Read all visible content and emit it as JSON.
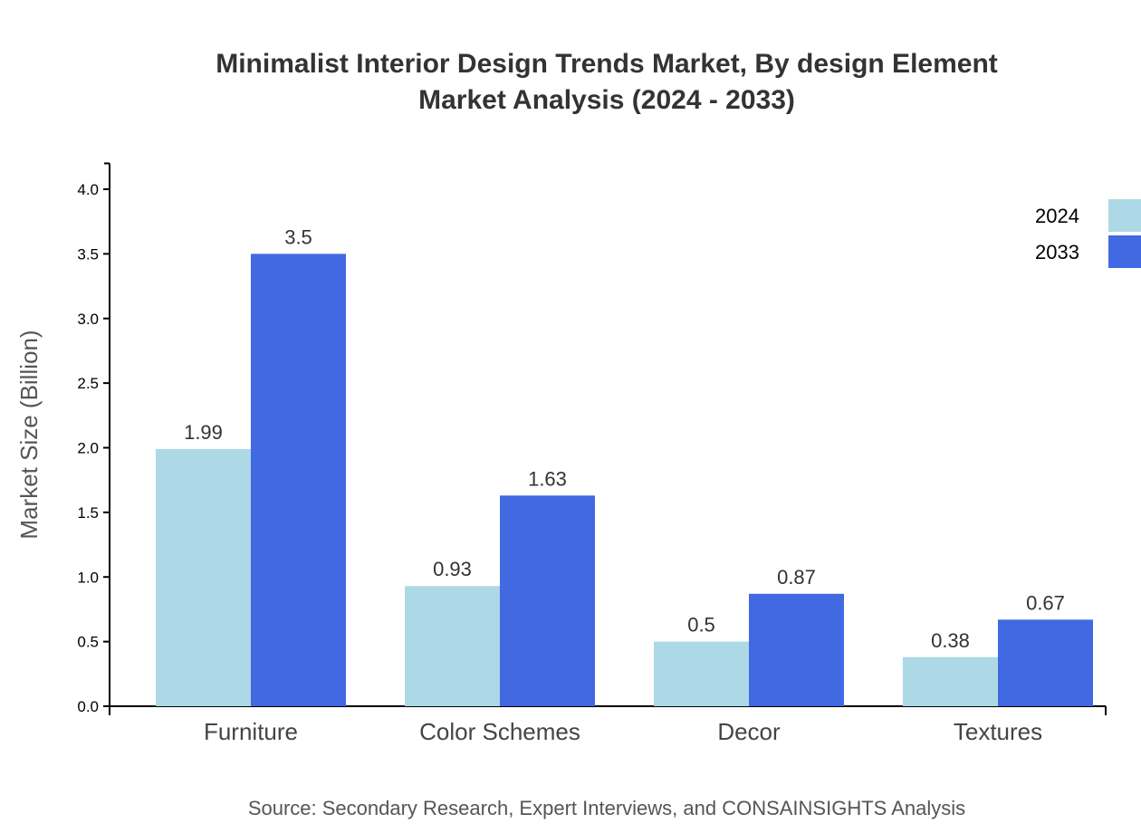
{
  "chart_data": {
    "type": "bar",
    "title_lines": [
      "Minimalist Interior Design Trends Market, By design Element",
      "Market Analysis (2024 - 2033)"
    ],
    "xlabel": "",
    "ylabel": "Market Size (Billion)",
    "categories": [
      "Furniture",
      "Color Schemes",
      "Decor",
      "Textures"
    ],
    "series": [
      {
        "name": "2024",
        "color": "#ADD8E6",
        "values": [
          1.99,
          0.93,
          0.5,
          0.38
        ]
      },
      {
        "name": "2033",
        "color": "#4169E1",
        "values": [
          3.5,
          1.63,
          0.87,
          0.67
        ]
      }
    ],
    "ylim": [
      0,
      4.2
    ],
    "yticks": [
      "0.0",
      "0.5",
      "1.0",
      "1.5",
      "2.0",
      "2.5",
      "3.0",
      "3.5",
      "4.0"
    ],
    "grid": false,
    "legend_position": "top-right",
    "source": "Source: Secondary Research, Expert Interviews, and CONSAINSIGHTS Analysis"
  }
}
